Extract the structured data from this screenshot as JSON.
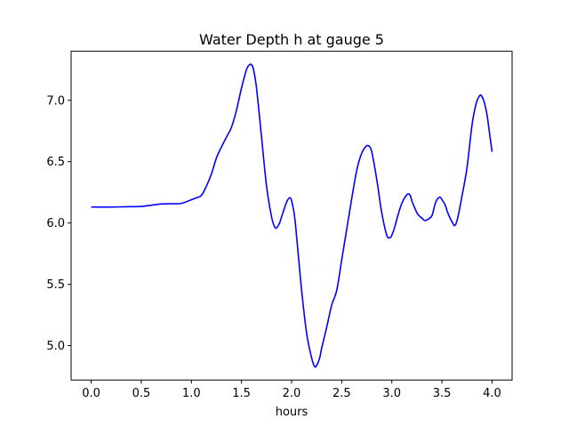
{
  "chart_data": {
    "type": "line",
    "title": "Water Depth h at gauge 5",
    "xlabel": "hours",
    "ylabel": "",
    "xlim": [
      -0.2,
      4.2
    ],
    "ylim": [
      4.72,
      7.4
    ],
    "xticks": [
      0.0,
      0.5,
      1.0,
      1.5,
      2.0,
      2.5,
      3.0,
      3.5,
      4.0
    ],
    "xtick_labels": [
      "0.0",
      "0.5",
      "1.0",
      "1.5",
      "2.0",
      "2.5",
      "3.0",
      "3.5",
      "4.0"
    ],
    "yticks": [
      5.0,
      5.5,
      6.0,
      6.5,
      7.0
    ],
    "ytick_labels": [
      "5.0",
      "5.5",
      "6.0",
      "6.5",
      "7.0"
    ],
    "grid": false,
    "series": [
      {
        "color": "#0000ff",
        "x": [
          0.0,
          0.2,
          0.4,
          0.5,
          0.6,
          0.7,
          0.8,
          0.9,
          1.0,
          1.05,
          1.1,
          1.15,
          1.2,
          1.25,
          1.3,
          1.35,
          1.4,
          1.45,
          1.5,
          1.55,
          1.58,
          1.6,
          1.62,
          1.65,
          1.7,
          1.75,
          1.8,
          1.83,
          1.85,
          1.88,
          1.9,
          1.95,
          1.98,
          2.0,
          2.03,
          2.06,
          2.1,
          2.15,
          2.2,
          2.23,
          2.25,
          2.28,
          2.3,
          2.35,
          2.4,
          2.45,
          2.5,
          2.55,
          2.6,
          2.65,
          2.7,
          2.75,
          2.78,
          2.8,
          2.83,
          2.86,
          2.9,
          2.95,
          2.98,
          3.0,
          3.03,
          3.06,
          3.1,
          3.15,
          3.18,
          3.2,
          3.23,
          3.26,
          3.3,
          3.33,
          3.36,
          3.4,
          3.43,
          3.45,
          3.48,
          3.5,
          3.53,
          3.56,
          3.6,
          3.63,
          3.66,
          3.7,
          3.75,
          3.8,
          3.84,
          3.87,
          3.89,
          3.92,
          3.95,
          3.98,
          4.0
        ],
        "y": [
          6.13,
          6.13,
          6.133,
          6.135,
          6.145,
          6.155,
          6.157,
          6.16,
          6.19,
          6.205,
          6.225,
          6.3,
          6.4,
          6.53,
          6.62,
          6.7,
          6.78,
          6.92,
          7.1,
          7.25,
          7.29,
          7.29,
          7.25,
          7.1,
          6.7,
          6.3,
          6.05,
          5.97,
          5.96,
          6.0,
          6.05,
          6.17,
          6.205,
          6.18,
          6.05,
          5.8,
          5.45,
          5.1,
          4.9,
          4.83,
          4.84,
          4.9,
          4.98,
          5.15,
          5.33,
          5.45,
          5.7,
          5.95,
          6.2,
          6.43,
          6.57,
          6.63,
          6.62,
          6.58,
          6.45,
          6.3,
          6.08,
          5.9,
          5.88,
          5.9,
          5.97,
          6.06,
          6.16,
          6.23,
          6.23,
          6.18,
          6.12,
          6.07,
          6.04,
          6.02,
          6.03,
          6.06,
          6.15,
          6.19,
          6.21,
          6.19,
          6.15,
          6.08,
          6.01,
          5.98,
          6.05,
          6.22,
          6.45,
          6.8,
          6.97,
          7.03,
          7.04,
          6.99,
          6.88,
          6.7,
          6.58
        ]
      }
    ]
  }
}
